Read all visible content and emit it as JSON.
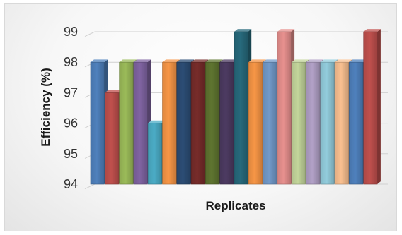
{
  "chart_data": {
    "type": "bar",
    "style": "3d-clustered-column",
    "xlabel": "Replicates",
    "ylabel": "Efficiency (%)",
    "ylim": [
      94,
      99
    ],
    "yticks": [
      "94",
      "95",
      "96",
      "97",
      "98",
      "99"
    ],
    "grid": true,
    "legend": "none",
    "values": [
      98,
      97,
      98,
      98,
      96,
      98,
      98,
      98,
      98,
      98,
      99,
      98,
      98,
      99,
      98,
      98,
      98,
      98,
      98,
      99
    ],
    "colors": [
      "#4f81bd",
      "#c0504d",
      "#9bbb59",
      "#8064a2",
      "#4bacc6",
      "#f79646",
      "#2c4d75",
      "#772c2a",
      "#5f7530",
      "#4d3b62",
      "#276a7c",
      "#f79646",
      "#729aca",
      "#e7908e",
      "#c3d69b",
      "#b2a1c7",
      "#93cddd",
      "#fac090",
      "#4f81bd",
      "#c0504d"
    ]
  }
}
